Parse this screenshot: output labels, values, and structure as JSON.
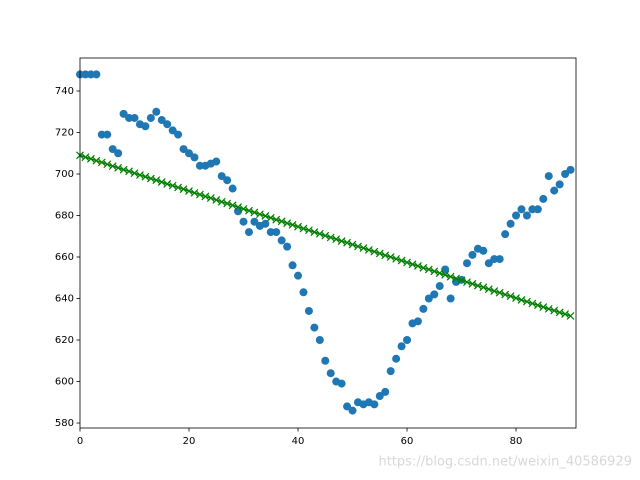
{
  "chart_data": {
    "type": "scatter",
    "watermark": "https://blog.csdn.net/weixin_40586929",
    "x": [
      0,
      1,
      2,
      3,
      4,
      5,
      6,
      7,
      8,
      9,
      10,
      11,
      12,
      13,
      14,
      15,
      16,
      17,
      18,
      19,
      20,
      21,
      22,
      23,
      24,
      25,
      26,
      27,
      28,
      29,
      30,
      31,
      32,
      33,
      34,
      35,
      36,
      37,
      38,
      39,
      40,
      41,
      42,
      43,
      44,
      45,
      46,
      47,
      48,
      49,
      50,
      51,
      52,
      53,
      54,
      55,
      56,
      57,
      58,
      59,
      60,
      61,
      62,
      63,
      64,
      65,
      66,
      67,
      68,
      69,
      70,
      71,
      72,
      73,
      74,
      75,
      76,
      77,
      78,
      79,
      80,
      81,
      82,
      83,
      84,
      85,
      86,
      87,
      88,
      89,
      90
    ],
    "series": [
      {
        "color": "#1f77b4",
        "marker": "o",
        "line": false,
        "values": [
          748,
          748,
          748,
          748,
          719,
          719,
          712,
          710,
          729,
          727,
          727,
          724,
          723,
          727,
          730,
          726,
          724,
          721,
          719,
          712,
          710,
          708,
          704,
          704,
          705,
          706,
          699,
          697,
          693,
          682,
          677,
          672,
          677,
          675,
          676,
          672,
          672,
          668,
          665,
          656,
          651,
          643,
          634,
          626,
          620,
          610,
          604,
          600,
          599,
          588,
          586,
          590,
          589,
          590,
          589,
          593,
          595,
          605,
          611,
          617,
          620,
          628,
          629,
          635,
          640,
          642,
          646,
          654,
          640,
          648,
          649,
          657,
          661,
          664,
          663,
          657,
          659,
          659,
          671,
          676,
          680,
          683,
          680,
          683,
          683,
          688,
          699,
          692,
          695,
          700,
          702
        ]
      },
      {
        "color": "#008000",
        "marker": "x",
        "line": true,
        "values": [
          709.0,
          708.1,
          707.3,
          706.4,
          705.6,
          704.7,
          703.8,
          703.0,
          702.1,
          701.3,
          700.4,
          699.5,
          698.7,
          697.8,
          697.0,
          696.1,
          695.2,
          694.4,
          693.5,
          692.7,
          691.8,
          690.9,
          690.1,
          689.2,
          688.4,
          687.5,
          686.6,
          685.8,
          684.9,
          684.1,
          683.2,
          682.3,
          681.5,
          680.6,
          679.8,
          678.9,
          678.0,
          677.2,
          676.3,
          675.5,
          674.6,
          673.7,
          672.9,
          672.0,
          671.2,
          670.3,
          669.4,
          668.6,
          667.7,
          666.9,
          666.0,
          665.1,
          664.3,
          663.4,
          662.6,
          661.7,
          660.8,
          660.0,
          659.1,
          658.3,
          657.4,
          656.5,
          655.7,
          654.8,
          654.0,
          653.1,
          652.2,
          651.4,
          650.5,
          649.7,
          648.8,
          647.9,
          647.1,
          646.2,
          645.4,
          644.5,
          643.6,
          642.8,
          641.9,
          641.1,
          640.2,
          639.3,
          638.5,
          637.6,
          636.8,
          635.9,
          635.0,
          634.2,
          633.3,
          632.5,
          631.6
        ]
      }
    ],
    "xlim": [
      0,
      91
    ],
    "ylim": [
      577.6,
      755.9
    ],
    "xticks": [
      0,
      20,
      40,
      60,
      80
    ],
    "yticks": [
      580,
      600,
      620,
      640,
      660,
      680,
      700,
      720,
      740
    ],
    "grid": false
  }
}
